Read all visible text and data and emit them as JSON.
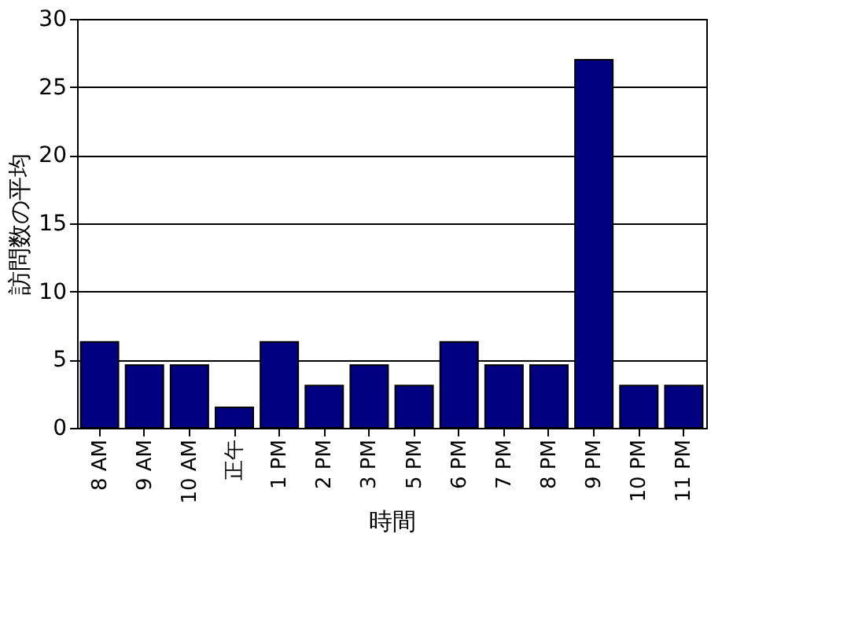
{
  "chart_data": {
    "type": "bar",
    "xlabel": "時間",
    "ylabel": "訪問数の平均",
    "categories": [
      "8 AM",
      "9 AM",
      "10 AM",
      "正午",
      "1 PM",
      "2 PM",
      "3 PM",
      "5 PM",
      "6 PM",
      "7 PM",
      "8 PM",
      "9 PM",
      "10 PM",
      "11 PM"
    ],
    "values": [
      6.3,
      4.6,
      4.6,
      1.5,
      6.3,
      3.1,
      4.6,
      3.1,
      6.3,
      4.6,
      4.6,
      27,
      3.1,
      3.1
    ],
    "color": "#000080",
    "ylim": [
      0,
      30
    ],
    "yticks": [
      0,
      5,
      10,
      15,
      20,
      25,
      30
    ],
    "grid": "y"
  }
}
